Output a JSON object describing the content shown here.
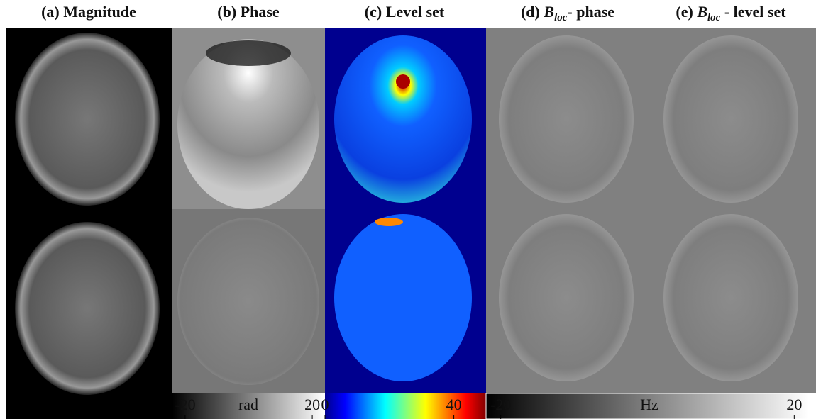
{
  "panels": [
    {
      "label": "(a) Magnitude"
    },
    {
      "label": "(b) Phase"
    },
    {
      "label": "(c) Level set"
    },
    {
      "label_parts": [
        "(d) ",
        "B",
        "loc",
        "- phase"
      ]
    },
    {
      "label_parts": [
        "(e) ",
        "B",
        "loc",
        " - level set"
      ]
    }
  ],
  "colorbars": [
    {
      "lim": [
        -24,
        24
      ],
      "ticks": [
        -20,
        20
      ],
      "unit": "rad"
    },
    {
      "lim": [
        0,
        50
      ],
      "ticks": [
        0,
        40
      ]
    },
    {
      "lim": [
        -22,
        22
      ],
      "ticks": [
        -20,
        20
      ],
      "unit": "Hz"
    }
  ]
}
